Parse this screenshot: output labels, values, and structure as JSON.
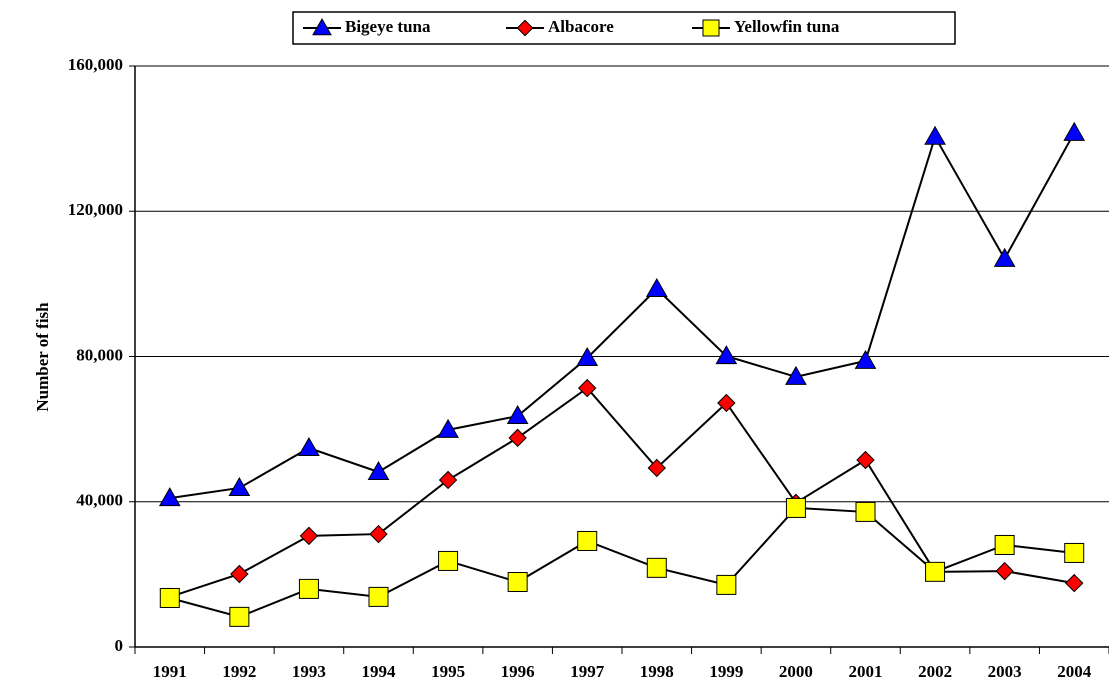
{
  "chart_data": {
    "type": "line",
    "y_label": "Number of fish",
    "categories": [
      "1991",
      "1992",
      "1993",
      "1994",
      "1995",
      "1996",
      "1997",
      "1998",
      "1999",
      "2000",
      "2001",
      "2002",
      "2003",
      "2004"
    ],
    "series": [
      {
        "name": "Bigeye tuna",
        "color": "#0000ff",
        "marker": "triangle",
        "values": [
          41000,
          43800,
          54800,
          48200,
          59800,
          63600,
          79600,
          98600,
          80100,
          74400,
          78800,
          140500,
          106900,
          141600
        ]
      },
      {
        "name": "Albacore",
        "color": "#ff0000",
        "marker": "diamond",
        "values": [
          13800,
          20100,
          30600,
          31100,
          46000,
          57600,
          71300,
          49300,
          67200,
          39700,
          51500,
          20700,
          20900,
          17600
        ]
      },
      {
        "name": "Yellowfin tuna",
        "color": "#ffff00",
        "marker": "square",
        "values": [
          13500,
          8300,
          16000,
          13800,
          23700,
          17900,
          29200,
          21800,
          17100,
          38300,
          37200,
          20700,
          28100,
          25900
        ]
      }
    ],
    "line_color": "#000000",
    "ylim": [
      0,
      160000
    ],
    "yticks": [
      0,
      {
        "value": 40000,
        "label": "40,000"
      },
      {
        "value": 80000,
        "label": "80,000"
      },
      {
        "value": 120000,
        "label": "120,000"
      },
      {
        "value": 160000,
        "label": "160,000"
      }
    ],
    "grid": true,
    "legend": "top"
  }
}
